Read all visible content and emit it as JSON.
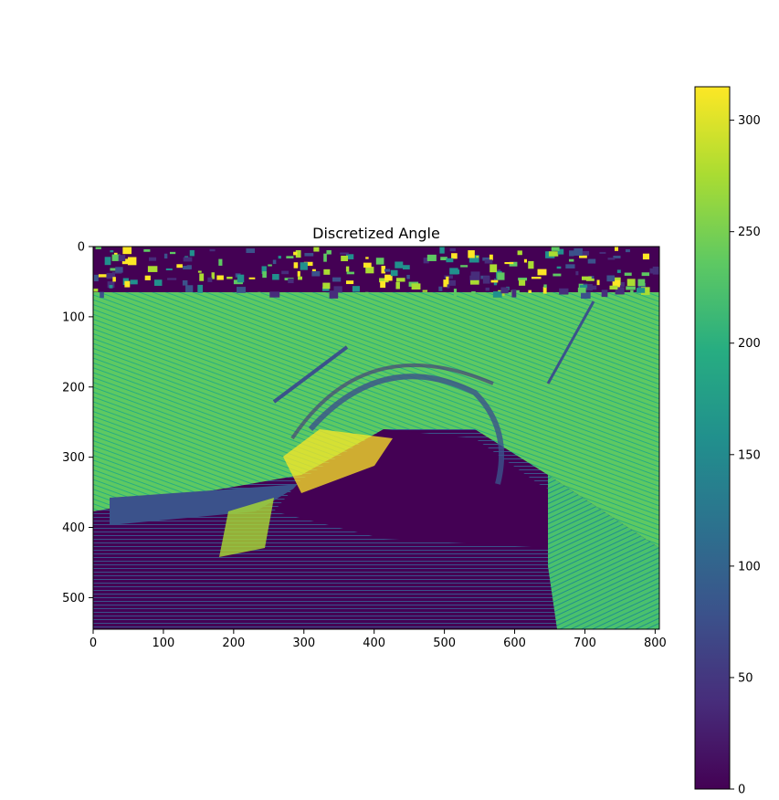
{
  "chart_data": {
    "type": "heatmap",
    "title": "Discretized Angle",
    "xlabel": "",
    "ylabel": "",
    "colormap": "viridis",
    "x_ticks": [
      0,
      100,
      200,
      300,
      400,
      500,
      600,
      700,
      800
    ],
    "y_ticks": [
      0,
      100,
      200,
      300,
      400,
      500
    ],
    "xlim": [
      0,
      806
    ],
    "ylim": [
      545,
      0
    ],
    "grid": false,
    "colorbar": {
      "range": [
        0,
        315
      ],
      "ticks": [
        0,
        50,
        100,
        150,
        200,
        250,
        300
      ]
    },
    "description": "",
    "colors": {
      "dark_purple": "#440154",
      "indigo": "#3b528b",
      "teal": "#21908d",
      "green": "#5ec962",
      "yellow": "#fde725"
    }
  }
}
